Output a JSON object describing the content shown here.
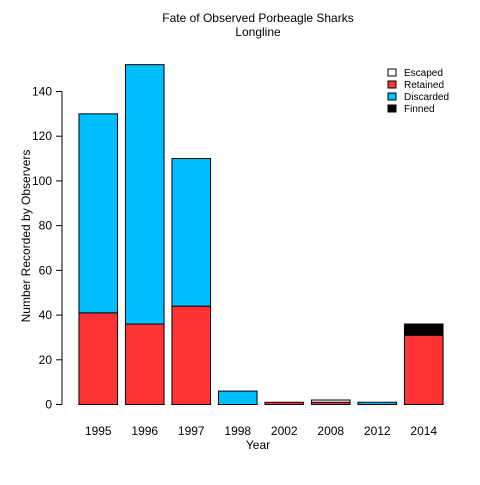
{
  "chart_data": {
    "type": "bar",
    "stacked": true,
    "title": "Fate of Observed Porbeagle Sharks",
    "subtitle": "Longline",
    "xlabel": "Year",
    "ylabel": "Number Recorded by Observers",
    "categories": [
      "1995",
      "1996",
      "1997",
      "1998",
      "2002",
      "2008",
      "2012",
      "2014"
    ],
    "ylim": [
      0,
      150
    ],
    "yticks": [
      0,
      20,
      40,
      60,
      80,
      100,
      120,
      140
    ],
    "grid": false,
    "legend_position": "top-right",
    "series": [
      {
        "name": "Retained",
        "color": "#FF3333",
        "values": [
          41,
          36,
          44,
          0,
          1,
          1,
          0,
          31
        ]
      },
      {
        "name": "Discarded",
        "color": "#00BFFF",
        "values": [
          89,
          116,
          66,
          6,
          0,
          0,
          1,
          0
        ]
      },
      {
        "name": "Finned",
        "color": "#000000",
        "values": [
          0,
          0,
          0,
          0,
          0,
          0,
          0,
          5
        ]
      },
      {
        "name": "Escaped",
        "color": "#FFFFFF",
        "values": [
          0,
          0,
          0,
          0,
          0,
          1,
          0,
          0
        ]
      }
    ],
    "legend_order": [
      "Escaped",
      "Retained",
      "Discarded",
      "Finned"
    ]
  }
}
